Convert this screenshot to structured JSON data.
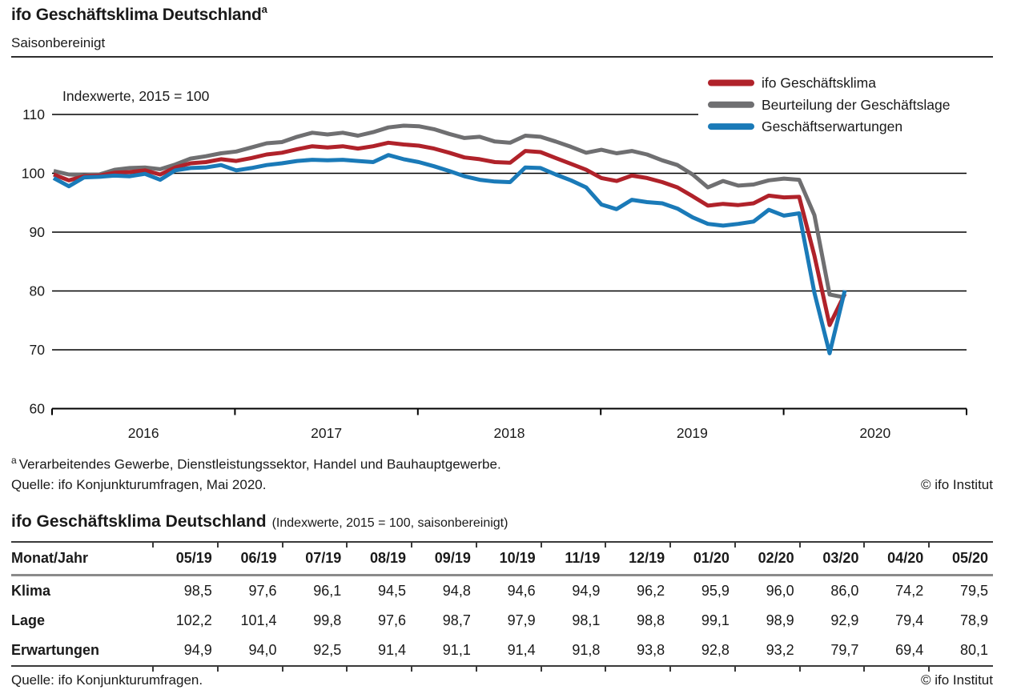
{
  "header": {
    "title": "ifo Geschäftsklima Deutschland",
    "title_superscript": "a",
    "subtitle": "Saisonbereinigt"
  },
  "chart_data": {
    "type": "line",
    "title": "ifo Geschäftsklima Deutschland, saisonbereinigt",
    "annotation": "Indexwerte, 2015 = 100",
    "x_start": "2016-01",
    "x_end": "2020-05",
    "x_frequency": "monthly",
    "x_tick_labels": [
      "2016",
      "2017",
      "2018",
      "2019",
      "2020"
    ],
    "y_ticks": [
      110,
      100,
      90,
      80,
      70,
      60
    ],
    "y_gridlines": [
      110,
      100,
      90,
      80,
      70
    ],
    "ylim": [
      60,
      112
    ],
    "legend_position": "top-right",
    "series": [
      {
        "name": "ifo Geschäftsklima",
        "color": "#b0222a",
        "values": [
          99.8,
          98.8,
          99.5,
          99.6,
          100.1,
          100.2,
          100.5,
          99.8,
          101.0,
          101.7,
          101.9,
          102.4,
          102.1,
          102.6,
          103.2,
          103.5,
          104.1,
          104.6,
          104.4,
          104.6,
          104.2,
          104.6,
          105.2,
          104.9,
          104.7,
          104.2,
          103.5,
          102.7,
          102.4,
          101.9,
          101.8,
          103.8,
          103.6,
          102.6,
          101.6,
          100.6,
          99.2,
          98.7,
          99.6,
          99.2,
          98.5,
          97.6,
          96.1,
          94.5,
          94.8,
          94.6,
          94.9,
          96.2,
          95.9,
          96.0,
          86.0,
          74.2,
          79.5
        ]
      },
      {
        "name": "Beurteilung der Geschäftslage",
        "color": "#6f6f71",
        "values": [
          100.4,
          99.8,
          99.7,
          99.8,
          100.6,
          100.9,
          101.0,
          100.7,
          101.5,
          102.5,
          102.9,
          103.4,
          103.7,
          104.4,
          105.1,
          105.3,
          106.2,
          106.9,
          106.6,
          106.9,
          106.4,
          107.0,
          107.8,
          108.1,
          108.0,
          107.5,
          106.7,
          106.0,
          106.2,
          105.4,
          105.2,
          106.4,
          106.2,
          105.4,
          104.5,
          103.5,
          104.0,
          103.4,
          103.8,
          103.2,
          102.2,
          101.4,
          99.8,
          97.6,
          98.7,
          97.9,
          98.1,
          98.8,
          99.1,
          98.9,
          92.9,
          79.4,
          78.9
        ]
      },
      {
        "name": "Geschäftserwartungen",
        "color": "#1a7ab8",
        "values": [
          99.2,
          97.8,
          99.3,
          99.4,
          99.6,
          99.5,
          99.9,
          98.9,
          100.5,
          100.9,
          101.0,
          101.4,
          100.5,
          100.9,
          101.4,
          101.7,
          102.1,
          102.3,
          102.2,
          102.3,
          102.1,
          101.9,
          103.1,
          102.4,
          101.9,
          101.2,
          100.4,
          99.5,
          98.9,
          98.6,
          98.5,
          101.0,
          100.9,
          99.8,
          98.8,
          97.6,
          94.7,
          93.9,
          95.5,
          95.1,
          94.9,
          94.0,
          92.5,
          91.4,
          91.1,
          91.4,
          91.8,
          93.8,
          92.8,
          93.2,
          79.7,
          69.4,
          80.1
        ]
      }
    ]
  },
  "chart_footer": {
    "footnote_superscript": "a",
    "footnote": "Verarbeitendes Gewerbe, Dienstleistungssektor, Handel und Bauhauptgewerbe.",
    "source": "Quelle: ifo Konjunkturumfragen, Mai 2020.",
    "copyright": "© ifo Institut"
  },
  "table": {
    "heading": "ifo Geschäftsklima Deutschland",
    "heading_note": "(Indexwerte, 2015 = 100, saisonbereinigt)",
    "columns": [
      "Monat/Jahr",
      "05/19",
      "06/19",
      "07/19",
      "08/19",
      "09/19",
      "10/19",
      "11/19",
      "12/19",
      "01/20",
      "02/20",
      "03/20",
      "04/20",
      "05/20"
    ],
    "rows": [
      {
        "label": "Klima",
        "values": [
          "98,5",
          "97,6",
          "96,1",
          "94,5",
          "94,8",
          "94,6",
          "94,9",
          "96,2",
          "95,9",
          "96,0",
          "86,0",
          "74,2",
          "79,5"
        ]
      },
      {
        "label": "Lage",
        "values": [
          "102,2",
          "101,4",
          "99,8",
          "97,6",
          "98,7",
          "97,9",
          "98,1",
          "98,8",
          "99,1",
          "98,9",
          "92,9",
          "79,4",
          "78,9"
        ]
      },
      {
        "label": "Erwartungen",
        "values": [
          "94,9",
          "94,0",
          "92,5",
          "91,4",
          "91,1",
          "91,4",
          "91,8",
          "93,8",
          "92,8",
          "93,2",
          "79,7",
          "69,4",
          "80,1"
        ]
      }
    ],
    "source": "Quelle: ifo Konjunkturumfragen.",
    "copyright": "© ifo Institut"
  }
}
